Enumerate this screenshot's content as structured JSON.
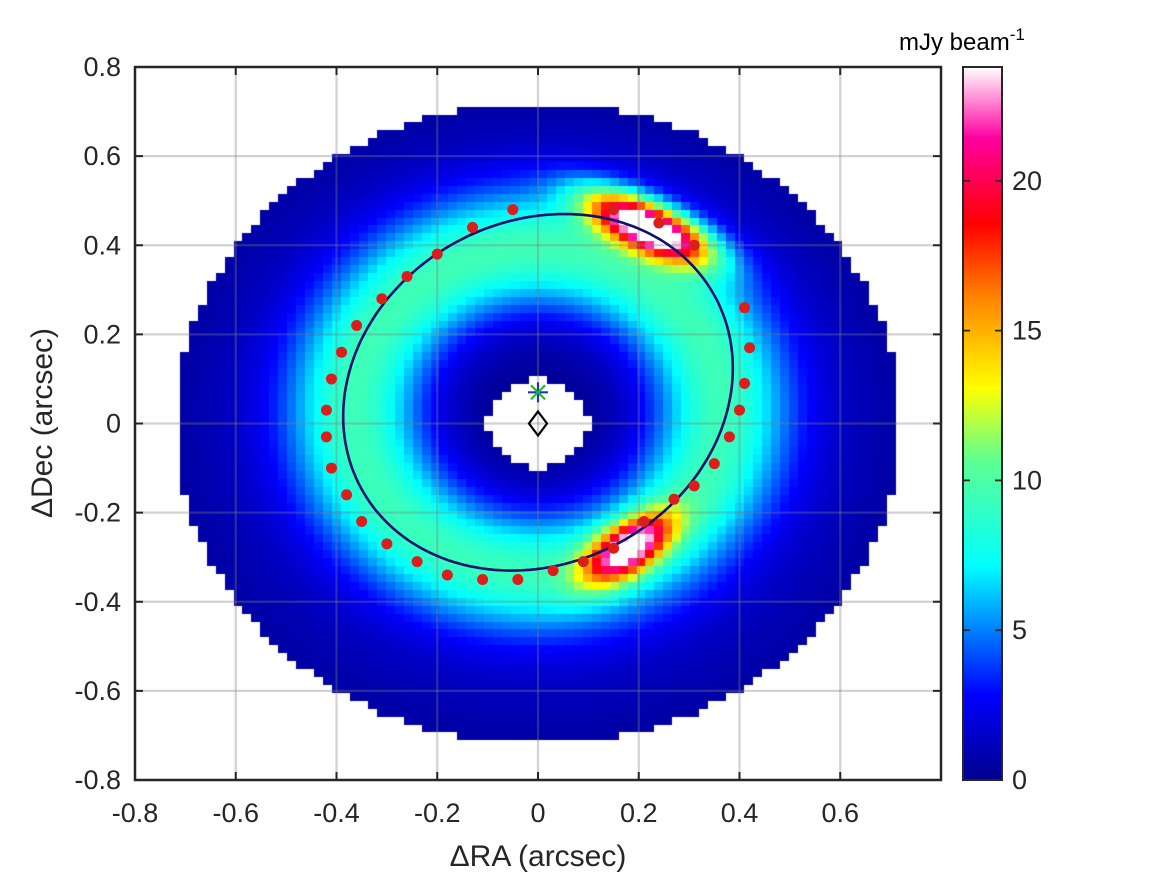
{
  "chart_data": {
    "type": "heatmap",
    "title": "",
    "xlabel": "ΔRA (arcsec)",
    "ylabel": "ΔDec (arcsec)",
    "xlim": [
      -0.8,
      0.8
    ],
    "ylim": [
      -0.8,
      0.8
    ],
    "xticks": [
      -0.8,
      -0.6,
      -0.4,
      -0.2,
      0,
      0.2,
      0.4,
      0.6
    ],
    "xtick_labels": [
      "-0.8",
      "-0.6",
      "-0.4",
      "-0.2",
      "0",
      "0.2",
      "0.4",
      "0.6"
    ],
    "yticks": [
      0.8,
      0.6,
      0.4,
      0.2,
      0,
      -0.2,
      -0.4,
      -0.6,
      -0.8
    ],
    "ytick_labels": [
      "0.8",
      "0.6",
      "0.4",
      "0.2",
      "0",
      "-0.2",
      "-0.4",
      "-0.6",
      "-0.8"
    ],
    "grid": true,
    "colormap": "jet-like (navy → blue → cyan → green → yellow → orange → red → magenta → white)",
    "colorbar": {
      "title": "mJy beam",
      "title_superscript": "-1",
      "range": [
        0,
        23.8
      ],
      "ticks": [
        20,
        15,
        10,
        5,
        0
      ],
      "tick_labels": [
        "20",
        "15",
        "10",
        "5",
        "0"
      ],
      "placement": "right"
    },
    "emission_model": {
      "valid_radius_arcsec": 0.72,
      "inner_hole_radius_arcsec": 0.1,
      "ring": {
        "center": [
          0,
          0.03
        ],
        "radius": 0.36,
        "width": 0.14,
        "peak": 8.5
      },
      "clumps": [
        {
          "center": [
            0.22,
            0.44
          ],
          "sigma": [
            0.09,
            0.035
          ],
          "angle_deg": -28,
          "peak": 23.5
        },
        {
          "center": [
            0.18,
            -0.28
          ],
          "sigma": [
            0.07,
            0.035
          ],
          "angle_deg": 40,
          "peak": 18
        }
      ]
    },
    "ellipse_fit": {
      "center": [
        0,
        0.07
      ],
      "semi_major": 0.42,
      "semi_minor": 0.365,
      "angle_deg": 52,
      "color": "#10106e"
    },
    "fit_points": [
      [
        -0.05,
        0.48
      ],
      [
        -0.13,
        0.44
      ],
      [
        -0.2,
        0.38
      ],
      [
        -0.26,
        0.33
      ],
      [
        -0.31,
        0.28
      ],
      [
        -0.36,
        0.22
      ],
      [
        -0.39,
        0.16
      ],
      [
        -0.41,
        0.1
      ],
      [
        -0.42,
        0.03
      ],
      [
        -0.42,
        -0.03
      ],
      [
        -0.41,
        -0.1
      ],
      [
        -0.38,
        -0.16
      ],
      [
        -0.35,
        -0.22
      ],
      [
        -0.3,
        -0.27
      ],
      [
        -0.24,
        -0.31
      ],
      [
        -0.18,
        -0.34
      ],
      [
        -0.11,
        -0.35
      ],
      [
        -0.04,
        -0.35
      ],
      [
        0.03,
        -0.33
      ],
      [
        0.09,
        -0.31
      ],
      [
        0.15,
        -0.28
      ],
      [
        0.21,
        -0.22
      ],
      [
        0.27,
        -0.17
      ],
      [
        0.31,
        -0.14
      ],
      [
        0.35,
        -0.09
      ],
      [
        0.38,
        -0.03
      ],
      [
        0.4,
        0.03
      ],
      [
        0.41,
        0.09
      ],
      [
        0.42,
        0.17
      ],
      [
        0.41,
        0.26
      ],
      [
        0.31,
        0.4
      ],
      [
        0.24,
        0.45
      ],
      [
        0.15,
        0.48
      ]
    ],
    "fit_points_color": "#dd1c1c",
    "markers": [
      {
        "symbol": "asterisk",
        "position": [
          0,
          0.07
        ],
        "colors": [
          "#2233cc",
          "#22bb22"
        ]
      },
      {
        "symbol": "diamond",
        "position": [
          0,
          0
        ],
        "color": "#000000"
      }
    ]
  }
}
